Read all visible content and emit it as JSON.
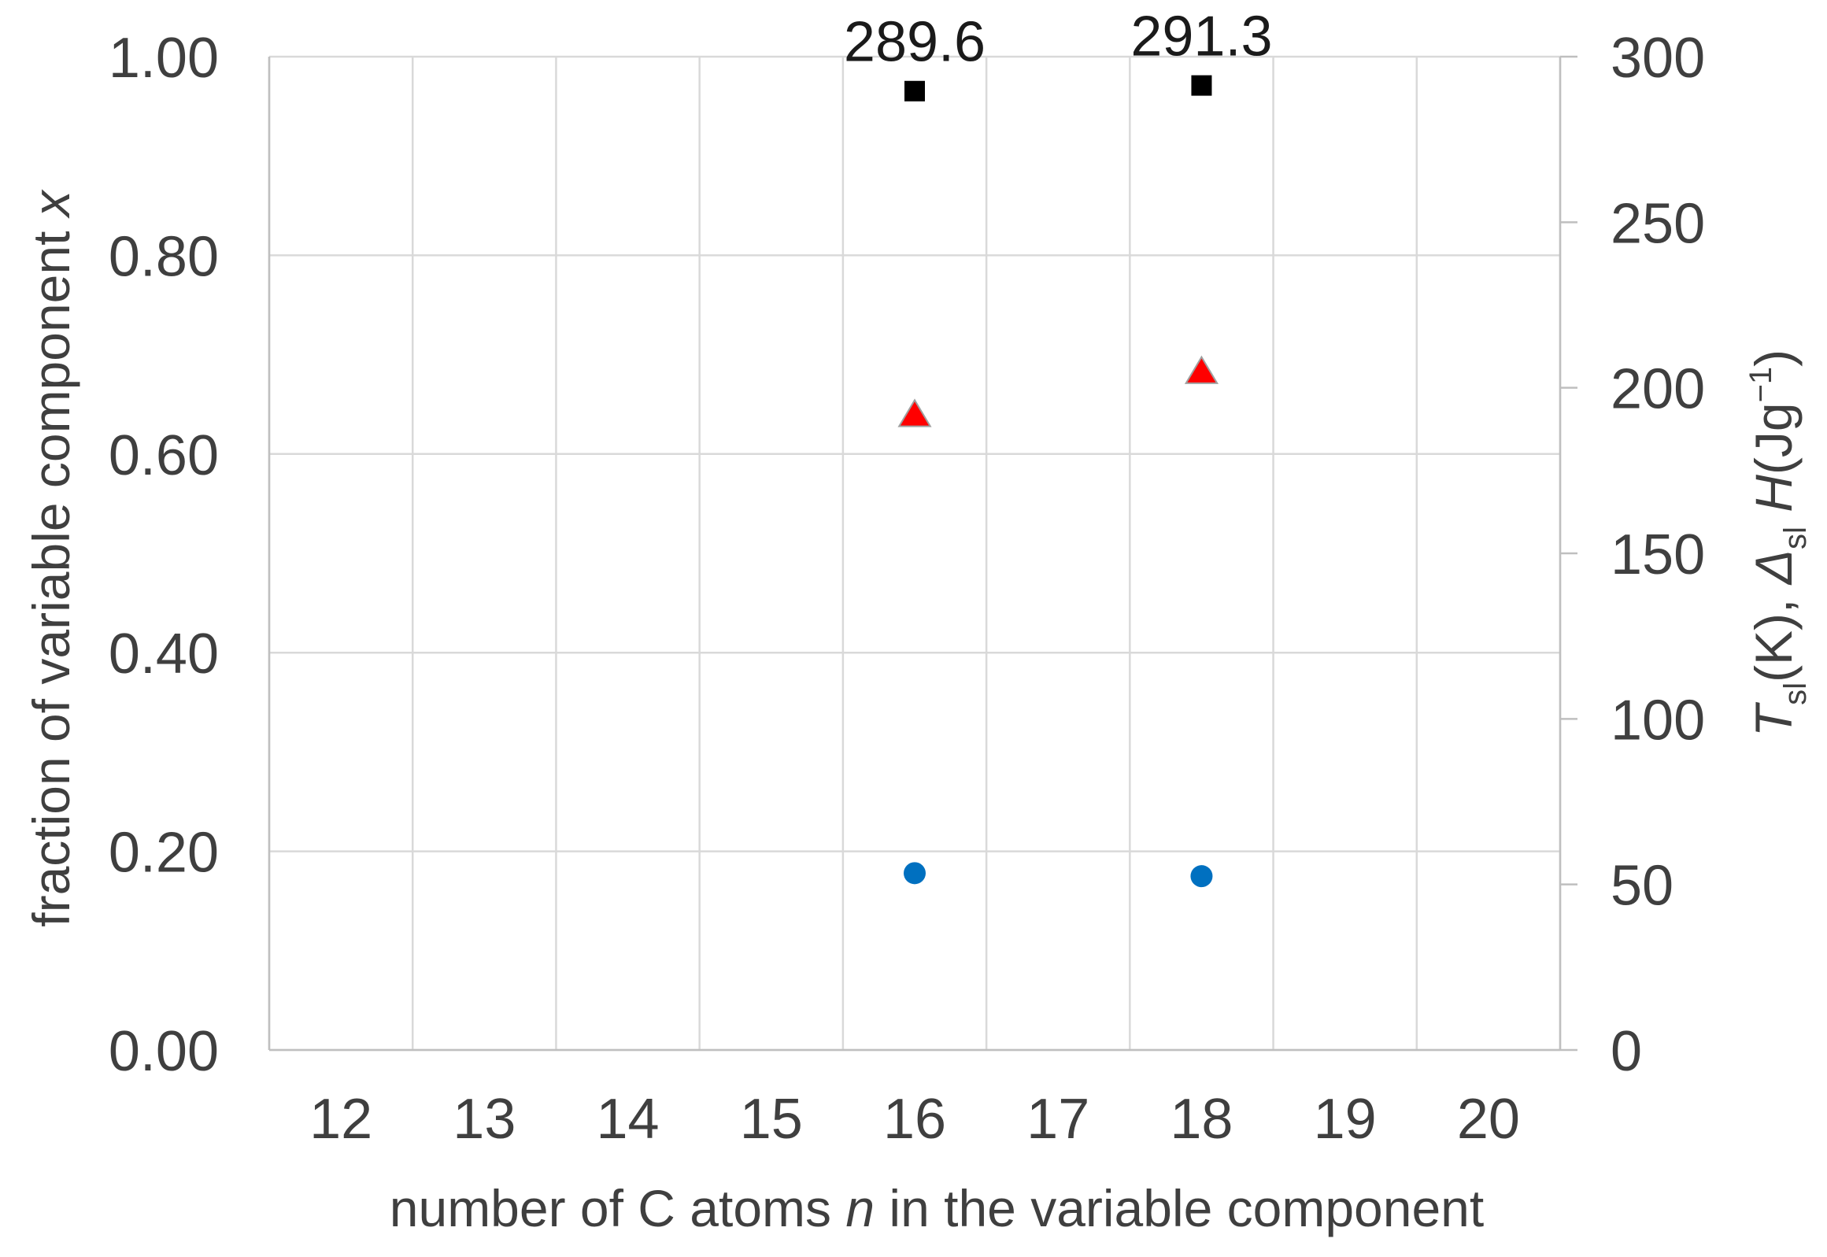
{
  "chart_data": {
    "type": "scatter",
    "title": "",
    "xlabel": {
      "parts": [
        {
          "text": "number of C atoms ",
          "style": "normal"
        },
        {
          "text": "n",
          "style": "italic"
        },
        {
          "text": " in the variable component",
          "style": "normal"
        }
      ]
    },
    "ylabel_left": {
      "parts": [
        {
          "text": "fraction of variable component ",
          "style": "normal"
        },
        {
          "text": "x",
          "style": "italic"
        }
      ]
    },
    "ylabel_right": {
      "parts": [
        {
          "text": "T",
          "style": "italic"
        },
        {
          "text": "sl",
          "style": "sub"
        },
        {
          "text": "(K), ",
          "style": "normal"
        },
        {
          "text": "Δ",
          "style": "italic"
        },
        {
          "text": "sl",
          "style": "sub"
        },
        {
          "text": " ",
          "style": "normal"
        },
        {
          "text": "H",
          "style": "italic"
        },
        {
          "text": "(Jg",
          "style": "normal"
        },
        {
          "text": "−1",
          "style": "sup"
        },
        {
          "text": ")",
          "style": "normal"
        }
      ]
    },
    "x_categories": [
      "12",
      "13",
      "14",
      "15",
      "16",
      "17",
      "18",
      "19",
      "20"
    ],
    "ylim_left": [
      0,
      1
    ],
    "yticks_left": [
      "0.00",
      "0.20",
      "0.40",
      "0.60",
      "0.80",
      "1.00"
    ],
    "ylim_right": [
      0,
      300
    ],
    "yticks_right": [
      "0",
      "50",
      "100",
      "150",
      "200",
      "250",
      "300"
    ],
    "grid": true,
    "legend": "none",
    "series": [
      {
        "marker": "square",
        "color": "#000000",
        "axis": "right",
        "points": [
          {
            "x": 16,
            "y": 289.6
          },
          {
            "x": 18,
            "y": 291.3
          }
        ],
        "data_labels": [
          "289.6",
          "291.3"
        ]
      },
      {
        "marker": "triangle",
        "color": "#ff0000",
        "axis": "right",
        "points": [
          {
            "x": 16,
            "y": 192
          },
          {
            "x": 18,
            "y": 205
          }
        ]
      },
      {
        "marker": "circle",
        "color": "#0070c0",
        "axis": "left",
        "points": [
          {
            "x": 16,
            "y": 0.178
          },
          {
            "x": 18,
            "y": 0.175
          }
        ]
      }
    ]
  }
}
